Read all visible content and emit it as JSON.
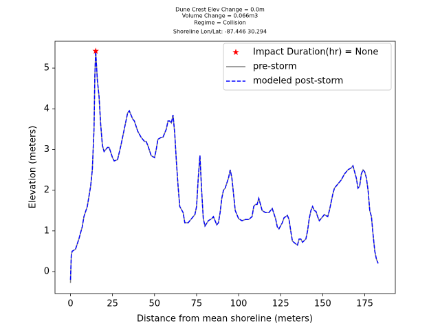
{
  "chart_data": {
    "type": "line",
    "title": [
      "Dune Crest Elev Change = 0.0m",
      "Volume Change = 0.066m3",
      "Regime = Collision",
      "Shoreline Lon/Lat: -87.446 30.294"
    ],
    "xlabel": "Distance from mean shoreline (meters)",
    "ylabel": "Elevation (meters)",
    "xlim": [
      -9.2,
      193.2
    ],
    "ylim": [
      -0.54,
      5.66
    ],
    "xticks": [
      0,
      25,
      50,
      75,
      100,
      125,
      150,
      175
    ],
    "yticks": [
      0,
      1,
      2,
      3,
      4,
      5
    ],
    "legend": "upper right",
    "x": [
      0,
      0.5,
      1,
      3,
      5,
      7,
      8,
      10,
      12,
      13,
      14,
      14.5,
      15,
      16,
      17,
      18,
      19,
      20,
      22,
      23,
      25,
      26,
      28,
      30,
      32,
      34,
      35,
      37,
      38,
      40,
      42,
      44,
      45,
      46,
      48,
      50,
      51,
      52,
      54,
      55,
      57,
      58,
      59,
      60,
      61,
      62,
      63,
      64,
      65,
      67,
      68,
      70,
      72,
      74,
      75,
      76,
      77,
      78,
      79,
      80,
      82,
      84,
      85,
      87,
      88,
      89,
      90,
      91,
      92,
      94,
      95,
      96,
      97,
      98,
      100,
      102,
      104,
      106,
      108,
      109,
      110,
      111,
      112,
      113,
      114,
      116,
      118,
      120,
      122,
      123,
      124,
      126,
      127,
      129,
      130,
      131,
      132,
      134,
      135,
      136,
      137,
      138,
      140,
      141,
      142,
      143,
      144,
      145,
      146,
      147,
      148,
      150,
      151,
      153,
      154,
      155,
      156,
      157,
      159,
      161,
      163,
      165,
      167,
      168,
      169,
      170,
      171,
      172,
      173,
      174,
      175,
      176,
      177,
      178,
      179,
      180,
      181,
      182,
      183
    ],
    "series": [
      {
        "name": "Impact Duration(hr) = None",
        "color": "#ff0000",
        "marker": "star",
        "x": [
          15
        ],
        "values": [
          5.42
        ]
      },
      {
        "name": "pre-storm",
        "color": "#808080",
        "linestyle": "solid",
        "values": [
          -0.28,
          0.4,
          0.5,
          0.55,
          0.8,
          1.1,
          1.35,
          1.6,
          2.1,
          2.5,
          3.5,
          4.8,
          5.42,
          4.7,
          4.3,
          3.6,
          3.1,
          2.95,
          3.05,
          3.05,
          2.8,
          2.72,
          2.75,
          3.1,
          3.5,
          3.9,
          3.95,
          3.75,
          3.7,
          3.45,
          3.3,
          3.2,
          3.2,
          3.1,
          2.85,
          2.8,
          3.0,
          3.25,
          3.3,
          3.3,
          3.5,
          3.7,
          3.7,
          3.65,
          3.85,
          3.4,
          2.7,
          2.1,
          1.6,
          1.45,
          1.2,
          1.2,
          1.3,
          1.4,
          1.6,
          2.3,
          2.85,
          2.0,
          1.3,
          1.12,
          1.25,
          1.3,
          1.35,
          1.15,
          1.2,
          1.45,
          1.8,
          2.0,
          2.05,
          2.3,
          2.5,
          2.3,
          1.9,
          1.5,
          1.3,
          1.25,
          1.28,
          1.28,
          1.35,
          1.6,
          1.65,
          1.65,
          1.8,
          1.65,
          1.5,
          1.45,
          1.45,
          1.55,
          1.3,
          1.1,
          1.05,
          1.2,
          1.32,
          1.38,
          1.28,
          1.0,
          0.75,
          0.68,
          0.65,
          0.8,
          0.8,
          0.72,
          0.8,
          1.0,
          1.3,
          1.5,
          1.6,
          1.5,
          1.48,
          1.35,
          1.25,
          1.35,
          1.4,
          1.35,
          1.5,
          1.7,
          1.9,
          2.05,
          2.15,
          2.25,
          2.4,
          2.5,
          2.55,
          2.6,
          2.45,
          2.3,
          2.05,
          2.1,
          2.4,
          2.5,
          2.45,
          2.3,
          2.0,
          1.5,
          1.35,
          0.9,
          0.5,
          0.3,
          0.2
        ]
      },
      {
        "name": "modeled post-storm",
        "color": "#0000ff",
        "linestyle": "dashed",
        "values": [
          -0.2,
          0.4,
          0.5,
          0.55,
          0.8,
          1.1,
          1.35,
          1.6,
          2.1,
          2.5,
          3.5,
          4.8,
          5.42,
          4.7,
          4.3,
          3.6,
          3.1,
          2.95,
          3.05,
          3.05,
          2.8,
          2.72,
          2.75,
          3.1,
          3.5,
          3.9,
          3.95,
          3.75,
          3.7,
          3.45,
          3.3,
          3.2,
          3.2,
          3.1,
          2.85,
          2.8,
          3.0,
          3.25,
          3.3,
          3.3,
          3.5,
          3.7,
          3.7,
          3.65,
          3.85,
          3.4,
          2.7,
          2.1,
          1.6,
          1.45,
          1.2,
          1.2,
          1.3,
          1.4,
          1.6,
          2.3,
          2.85,
          2.0,
          1.3,
          1.12,
          1.25,
          1.3,
          1.35,
          1.15,
          1.2,
          1.45,
          1.8,
          2.0,
          2.05,
          2.3,
          2.5,
          2.3,
          1.9,
          1.5,
          1.3,
          1.25,
          1.28,
          1.28,
          1.35,
          1.6,
          1.65,
          1.65,
          1.8,
          1.65,
          1.5,
          1.45,
          1.45,
          1.55,
          1.3,
          1.1,
          1.05,
          1.2,
          1.32,
          1.38,
          1.28,
          1.0,
          0.75,
          0.68,
          0.65,
          0.8,
          0.8,
          0.72,
          0.8,
          1.0,
          1.3,
          1.5,
          1.6,
          1.5,
          1.48,
          1.35,
          1.25,
          1.35,
          1.4,
          1.35,
          1.5,
          1.7,
          1.9,
          2.05,
          2.15,
          2.25,
          2.4,
          2.5,
          2.55,
          2.6,
          2.45,
          2.3,
          2.05,
          2.1,
          2.4,
          2.5,
          2.45,
          2.3,
          2.0,
          1.5,
          1.35,
          0.9,
          0.5,
          0.3,
          0.2
        ]
      }
    ]
  }
}
